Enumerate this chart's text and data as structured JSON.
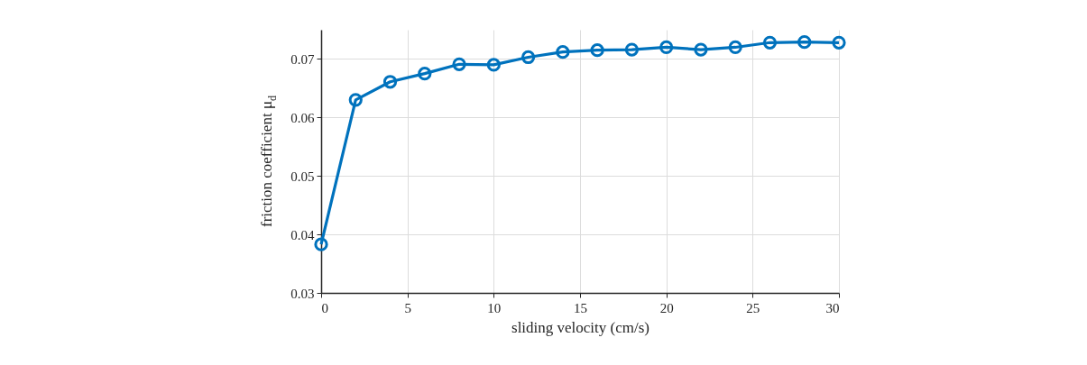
{
  "chart_data": {
    "type": "line",
    "xlabel": "sliding velocity (cm/s)",
    "ylabel": "friction coefficient μ$_{d}$",
    "x": [
      0,
      2,
      4,
      6,
      8,
      10,
      12,
      14,
      16,
      18,
      20,
      22,
      24,
      26,
      28,
      30
    ],
    "series": [
      {
        "color": "#0072bd",
        "values": [
          0.0383,
          0.063,
          0.0661,
          0.0675,
          0.0691,
          0.069,
          0.0703,
          0.0712,
          0.0715,
          0.0716,
          0.072,
          0.0716,
          0.072,
          0.0728,
          0.0729,
          0.0728
        ]
      }
    ],
    "xlim": [
      0,
      30
    ],
    "xticks": [
      0,
      5,
      10,
      15,
      20,
      25,
      30
    ],
    "ylim": [
      0.03,
      0.075
    ],
    "yticks": [
      0.03,
      0.04,
      0.05,
      0.06,
      0.07
    ],
    "grid": true,
    "marker": "circle",
    "line_style": "solid"
  }
}
